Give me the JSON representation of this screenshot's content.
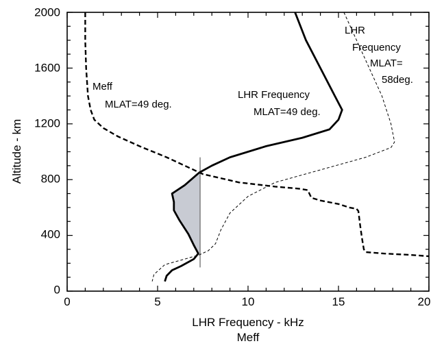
{
  "chart_data": {
    "type": "line",
    "xlabel": "LHR Frequency - kHz",
    "xlabel_2": "Meff",
    "ylabel": "Altitude - km",
    "xlim": [
      0,
      20
    ],
    "ylim": [
      0,
      2000
    ],
    "x_ticks": [
      "0",
      "5",
      "10",
      "15",
      "20"
    ],
    "y_ticks": [
      "0",
      "400",
      "800",
      "1200",
      "1600",
      "2000"
    ],
    "grid": false,
    "series": [
      {
        "name": "Meff MLAT=49 deg.",
        "style": "dashed-thick",
        "color": "#000000",
        "points": [
          [
            1.0,
            2000
          ],
          [
            1.0,
            1800
          ],
          [
            1.05,
            1600
          ],
          [
            1.15,
            1400
          ],
          [
            1.3,
            1300
          ],
          [
            1.5,
            1230
          ],
          [
            2.0,
            1170
          ],
          [
            2.8,
            1110
          ],
          [
            4.0,
            1040
          ],
          [
            5.5,
            960
          ],
          [
            7.5,
            840
          ],
          [
            9.5,
            780
          ],
          [
            11.5,
            750
          ],
          [
            12.8,
            735
          ],
          [
            13.3,
            725
          ],
          [
            13.5,
            670
          ],
          [
            14.0,
            650
          ],
          [
            15.0,
            625
          ],
          [
            15.6,
            600
          ],
          [
            16.0,
            590
          ],
          [
            16.1,
            575
          ],
          [
            16.2,
            470
          ],
          [
            16.3,
            380
          ],
          [
            16.4,
            300
          ],
          [
            16.5,
            280
          ],
          [
            17.5,
            270
          ],
          [
            19.0,
            260
          ],
          [
            20.0,
            250
          ]
        ]
      },
      {
        "name": "LHR Frequency MLAT=49 deg.",
        "style": "solid-thick",
        "color": "#000000",
        "points": [
          [
            12.6,
            2000
          ],
          [
            13.2,
            1800
          ],
          [
            14.0,
            1600
          ],
          [
            14.8,
            1400
          ],
          [
            15.2,
            1300
          ],
          [
            15.0,
            1230
          ],
          [
            14.5,
            1160
          ],
          [
            13.0,
            1100
          ],
          [
            11.0,
            1040
          ],
          [
            9.0,
            960
          ],
          [
            8.0,
            900
          ],
          [
            7.3,
            850
          ],
          [
            6.5,
            760
          ],
          [
            5.8,
            700
          ],
          [
            5.9,
            640
          ],
          [
            5.9,
            580
          ],
          [
            6.2,
            510
          ],
          [
            6.7,
            410
          ],
          [
            7.0,
            330
          ],
          [
            7.25,
            270
          ],
          [
            7.0,
            230
          ],
          [
            6.3,
            180
          ],
          [
            5.8,
            150
          ],
          [
            5.5,
            110
          ],
          [
            5.4,
            70
          ]
        ]
      },
      {
        "name": "LHR Frequency MLAT= 58deg.",
        "style": "dashed-thin",
        "color": "#000000",
        "points": [
          [
            15.3,
            2000
          ],
          [
            16.0,
            1800
          ],
          [
            16.7,
            1600
          ],
          [
            17.4,
            1400
          ],
          [
            17.9,
            1200
          ],
          [
            18.1,
            1070
          ],
          [
            17.9,
            1030
          ],
          [
            16.5,
            960
          ],
          [
            14.0,
            870
          ],
          [
            11.5,
            780
          ],
          [
            10.0,
            680
          ],
          [
            9.0,
            560
          ],
          [
            8.5,
            440
          ],
          [
            8.2,
            340
          ],
          [
            7.8,
            290
          ],
          [
            7.3,
            260
          ],
          [
            6.5,
            230
          ],
          [
            5.4,
            190
          ],
          [
            4.8,
            120
          ],
          [
            4.7,
            70
          ]
        ]
      }
    ],
    "shaded_region": {
      "color": "#c8cbd3",
      "x_boundary": 7.35,
      "bounded_by": "LHR Frequency MLAT=49 deg.",
      "y_range": [
        270,
        850
      ]
    },
    "vertical_line": {
      "x": 7.35,
      "y_range": [
        170,
        960
      ],
      "color": "#777777"
    },
    "annotations": [
      {
        "lines": [
          "Meff",
          "MLAT=49 deg."
        ],
        "anchor_x": 1.4,
        "anchor_y": 1470
      },
      {
        "lines": [
          "LHR Frequency",
          "MLAT=49 deg."
        ],
        "anchor_x": 9.3,
        "anchor_y": 1370
      },
      {
        "lines": [
          "LHR",
          "Frequency",
          "MLAT=",
          "58deg."
        ],
        "anchor_x": 15.6,
        "anchor_y": 1870
      }
    ]
  }
}
